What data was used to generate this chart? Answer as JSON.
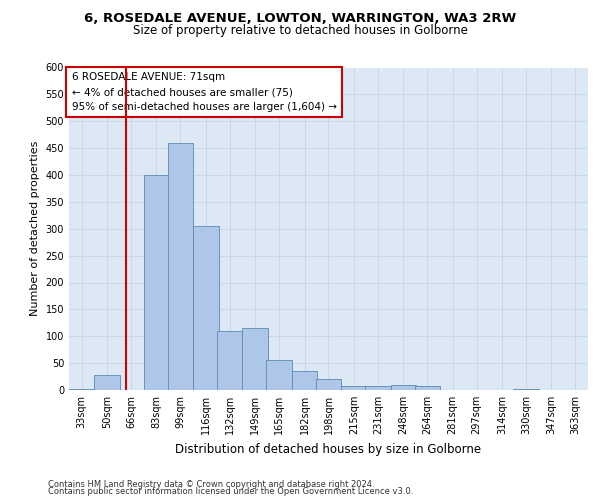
{
  "title1": "6, ROSEDALE AVENUE, LOWTON, WARRINGTON, WA3 2RW",
  "title2": "Size of property relative to detached houses in Golborne",
  "xlabel": "Distribution of detached houses by size in Golborne",
  "ylabel": "Number of detached properties",
  "footer1": "Contains HM Land Registry data © Crown copyright and database right 2024.",
  "footer2": "Contains public sector information licensed under the Open Government Licence v3.0.",
  "annotation_title": "6 ROSEDALE AVENUE: 71sqm",
  "annotation_line1": "← 4% of detached houses are smaller (75)",
  "annotation_line2": "95% of semi-detached houses are larger (1,604) →",
  "vline_x": 71,
  "bar_categories": [
    "33sqm",
    "50sqm",
    "66sqm",
    "83sqm",
    "99sqm",
    "116sqm",
    "132sqm",
    "149sqm",
    "165sqm",
    "182sqm",
    "198sqm",
    "215sqm",
    "231sqm",
    "248sqm",
    "264sqm",
    "281sqm",
    "297sqm",
    "314sqm",
    "330sqm",
    "347sqm",
    "363sqm"
  ],
  "bar_edges": [
    33,
    50,
    66,
    83,
    99,
    116,
    132,
    149,
    165,
    182,
    198,
    215,
    231,
    248,
    264,
    281,
    297,
    314,
    330,
    347,
    363
  ],
  "bar_values": [
    2,
    28,
    0,
    400,
    460,
    305,
    110,
    115,
    55,
    35,
    20,
    8,
    8,
    10,
    8,
    0,
    0,
    0,
    1,
    0,
    0
  ],
  "bar_color": "#aec6e8",
  "bar_edgecolor": "#5a8ab5",
  "vline_color": "#cc0000",
  "annotation_box_color": "#cc0000",
  "grid_color": "#c8d8e8",
  "bg_color": "#dce8f4",
  "ylim": [
    0,
    600
  ],
  "yticks": [
    0,
    50,
    100,
    150,
    200,
    250,
    300,
    350,
    400,
    450,
    500,
    550,
    600
  ],
  "title1_fontsize": 9.5,
  "title2_fontsize": 8.5,
  "ylabel_fontsize": 8,
  "xlabel_fontsize": 8.5,
  "tick_fontsize": 7,
  "footer_fontsize": 6,
  "annot_fontsize": 7.5
}
